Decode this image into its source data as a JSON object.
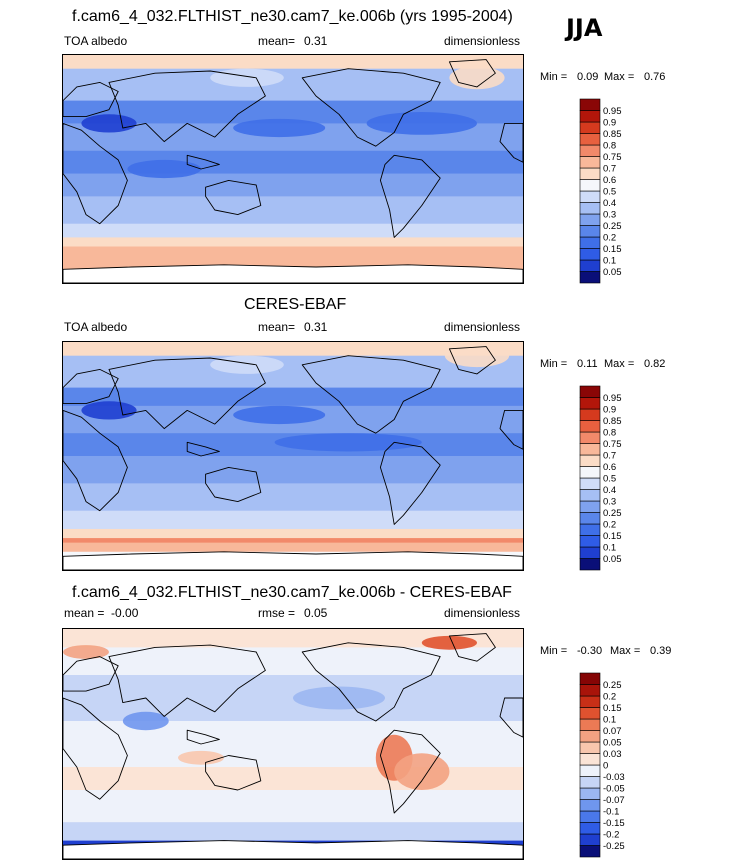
{
  "season": "JJA",
  "panels": [
    {
      "title": "f.cam6_4_032.FLTHIST_ne30.cam7_ke.006b (yrs 1995-2004)",
      "left_label": "TOA albedo",
      "stat_label": "mean=",
      "stat_value": "0.31",
      "units": "dimensionless",
      "min_text": "Min =",
      "min_value": "0.09",
      "max_text": "Max =",
      "max_value": "0.76",
      "kind": "abs"
    },
    {
      "title": "CERES-EBAF",
      "left_label": "TOA albedo",
      "stat_label": "mean=",
      "stat_value": "0.31",
      "units": "dimensionless",
      "min_text": "Min =",
      "min_value": "0.11",
      "max_text": "Max =",
      "max_value": "0.82",
      "kind": "abs"
    },
    {
      "title": "f.cam6_4_032.FLTHIST_ne30.cam7_ke.006b - CERES-EBAF",
      "left_label": "mean =  -0.00",
      "stat_label": "rmse =",
      "stat_value": "0.05",
      "units": "dimensionless",
      "min_text": "Min =",
      "min_value": "-0.30",
      "max_text": "Max =",
      "max_value": "0.39",
      "kind": "diff"
    }
  ],
  "chart_data": [
    {
      "type": "heatmap",
      "title": "f.cam6_4_032.FLTHIST_ne30.cam7_ke.006b (yrs 1995-2004)",
      "variable": "TOA albedo",
      "units": "dimensionless",
      "mean": 0.31,
      "min": 0.09,
      "max": 0.76,
      "colorbar_levels": [
        "0.05",
        "0.1",
        "0.15",
        "0.2",
        "0.25",
        "0.3",
        "0.4",
        "0.5",
        "0.6",
        "0.7",
        "0.75",
        "0.8",
        "0.85",
        "0.9",
        "0.95"
      ],
      "colorbar_colors": [
        "#0a0f78",
        "#1f3fd0",
        "#2f5ce6",
        "#3f6fe8",
        "#5a86ea",
        "#7fa2ee",
        "#a6bff4",
        "#cfdcf8",
        "#f5f7fb",
        "#fbdcc6",
        "#f8b89a",
        "#f2896a",
        "#e8603f",
        "#d53a1e",
        "#b3160a",
        "#8a0606"
      ]
    },
    {
      "type": "heatmap",
      "title": "CERES-EBAF",
      "variable": "TOA albedo",
      "units": "dimensionless",
      "mean": 0.31,
      "min": 0.11,
      "max": 0.82,
      "colorbar_levels": [
        "0.05",
        "0.1",
        "0.15",
        "0.2",
        "0.25",
        "0.3",
        "0.4",
        "0.5",
        "0.6",
        "0.7",
        "0.75",
        "0.8",
        "0.85",
        "0.9",
        "0.95"
      ],
      "colorbar_colors": [
        "#0a0f78",
        "#1f3fd0",
        "#2f5ce6",
        "#3f6fe8",
        "#5a86ea",
        "#7fa2ee",
        "#a6bff4",
        "#cfdcf8",
        "#f5f7fb",
        "#fbdcc6",
        "#f8b89a",
        "#f2896a",
        "#e8603f",
        "#d53a1e",
        "#b3160a",
        "#8a0606"
      ]
    },
    {
      "type": "heatmap",
      "title": "f.cam6_4_032.FLTHIST_ne30.cam7_ke.006b - CERES-EBAF",
      "units": "dimensionless",
      "mean": -0.0,
      "rmse": 0.05,
      "min": -0.3,
      "max": 0.39,
      "colorbar_levels": [
        "-0.25",
        "-0.2",
        "-0.15",
        "-0.1",
        "-0.07",
        "-0.05",
        "-0.03",
        "0",
        "0.03",
        "0.05",
        "0.07",
        "0.1",
        "0.15",
        "0.2",
        "0.25"
      ],
      "colorbar_colors": [
        "#0a0f78",
        "#1f3fd0",
        "#2f5ce6",
        "#4a78ea",
        "#6f96ee",
        "#9bb7f2",
        "#c6d5f6",
        "#eef2fa",
        "#fbe4d6",
        "#f8c6ad",
        "#f3a282",
        "#ec7a55",
        "#e0522f",
        "#c82f17",
        "#a8140a",
        "#850505"
      ]
    }
  ]
}
